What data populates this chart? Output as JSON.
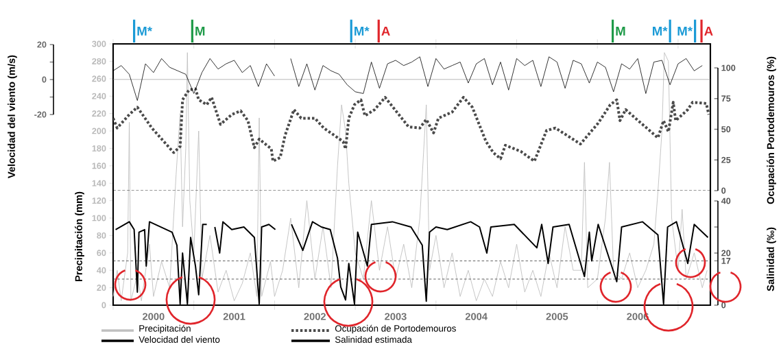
{
  "chart_data": [
    {
      "type": "line",
      "xlim": [
        2000,
        2007.4
      ],
      "tick_labels": "y",
      "ylabel": "Velocidad del viento (m/s)",
      "ylim": [
        -20,
        20
      ],
      "yticks": [
        -20,
        {
          "value": -10,
          "label": null
        },
        0,
        {
          "value": 10,
          "label": null
        },
        20
      ],
      "legend": "bottom",
      "ref_lines": [
        {
          "axis": "y",
          "value": 0,
          "color": "#888888",
          "line_style": "solid"
        }
      ],
      "series": [
        {
          "name": "Velocidad del viento",
          "color": "#000000",
          "line_style": "solid",
          "x": [
            2000.0,
            2000.1,
            2000.2,
            2000.3,
            2000.4,
            2000.5,
            2000.6,
            2000.7,
            2000.8,
            2000.9,
            2001.0,
            2001.1,
            2001.2,
            2001.3,
            2001.4,
            2001.5,
            2001.6,
            2001.7,
            2001.8,
            2001.9,
            2002.0,
            2002.1,
            2002.2,
            2002.3,
            2002.4,
            2002.5,
            2002.6,
            2002.7,
            2002.8,
            2002.9,
            2003.0,
            2003.1,
            2003.2,
            2003.3,
            2003.4,
            2003.5,
            2003.6,
            2003.7,
            2003.8,
            2003.9,
            2004.0,
            2004.1,
            2004.2,
            2004.3,
            2004.4,
            2004.5,
            2004.6,
            2004.7,
            2004.8,
            2004.9,
            2005.0,
            2005.1,
            2005.2,
            2005.3,
            2005.4,
            2005.5,
            2005.6,
            2005.7,
            2005.8,
            2005.9,
            2006.0,
            2006.1,
            2006.2,
            2006.3,
            2006.4,
            2006.5,
            2006.6,
            2006.7,
            2006.8,
            2006.9,
            2007.0,
            2007.1,
            2007.2,
            2007.3
          ],
          "values": [
            5,
            8,
            3,
            -12,
            9,
            4,
            12,
            7,
            5,
            3,
            -8,
            4,
            12,
            6,
            9,
            11,
            4,
            8,
            -4,
            9,
            2,
            null,
            12,
            -4,
            9,
            -6,
            8,
            5,
            3,
            -3,
            -7,
            -8,
            10,
            -5,
            9,
            11,
            8,
            10,
            13,
            -4,
            12,
            6,
            8,
            10,
            -2,
            9,
            12,
            -3,
            10,
            -6,
            12,
            8,
            11,
            -4,
            13,
            10,
            -5,
            11,
            9,
            -2,
            10,
            7,
            -7,
            9,
            6,
            12,
            -8,
            10,
            11,
            -3,
            9,
            12,
            5,
            8
          ]
        }
      ]
    },
    {
      "type": "line",
      "xlim": [
        2000,
        2007.4
      ],
      "xticks": [
        {
          "value": 2000,
          "label": null
        },
        {
          "value": 2000.5,
          "label": "2000"
        },
        {
          "value": 2001,
          "label": null
        },
        {
          "value": 2001.5,
          "label": "2001"
        },
        {
          "value": 2002,
          "label": null
        },
        {
          "value": 2002.5,
          "label": "2002"
        },
        {
          "value": 2003,
          "label": null
        },
        {
          "value": 2003.5,
          "label": "2003"
        },
        {
          "value": 2004,
          "label": null
        },
        {
          "value": 2004.5,
          "label": "2004"
        },
        {
          "value": 2005,
          "label": null
        },
        {
          "value": 2005.5,
          "label": "2005"
        },
        {
          "value": 2006,
          "label": null
        },
        {
          "value": 2006.5,
          "label": "2006"
        },
        {
          "value": 2007,
          "label": null
        }
      ],
      "ylabel": "Precipitación (mm)",
      "ylim": [
        0,
        300
      ],
      "yticks": [
        0,
        20,
        40,
        60,
        80,
        100,
        120,
        140,
        160,
        180,
        200,
        220,
        240,
        260,
        280,
        300
      ],
      "y2label": "Ocupación Portodemouros (%)",
      "y2lim": [
        0,
        100
      ],
      "y2ticks": [
        0,
        25,
        50,
        75,
        100
      ],
      "y3label": "Salinidad  (‰)",
      "y3lim": [
        0,
        40
      ],
      "y3ticks": [
        0,
        17,
        20,
        {
          "value": 30,
          "label": null
        },
        40
      ],
      "legend": "bottom",
      "ref_lines": [
        {
          "axis": "y2",
          "value": 0,
          "color": "#000000",
          "line_style": "dashed"
        },
        {
          "axis": "y3",
          "value": 17,
          "color": "#333333",
          "line_style": "dotted"
        },
        {
          "axis": "y3",
          "value": 10,
          "color": "#333333",
          "line_style": "dotted"
        },
        {
          "axis": "x",
          "value": 2000.26,
          "label": "M*",
          "color": "#1a9ad6"
        },
        {
          "axis": "x",
          "value": 2000.98,
          "label": "M",
          "color": "#1e9a48"
        },
        {
          "axis": "x",
          "value": 2002.95,
          "label": "M*",
          "color": "#1a9ad6"
        },
        {
          "axis": "x",
          "value": 2003.29,
          "label": "A",
          "color": "#e0252b"
        },
        {
          "axis": "x",
          "value": 2006.19,
          "label": "M",
          "color": "#1e9a48"
        },
        {
          "axis": "x",
          "value": 2006.9,
          "label": "M*",
          "color": "#1a9ad6"
        },
        {
          "axis": "x",
          "value": 2007.21,
          "label": "M*",
          "color": "#1a9ad6"
        },
        {
          "axis": "x",
          "value": 2007.29,
          "label": "A",
          "color": "#e0252b"
        }
      ],
      "series": [
        {
          "name": "Precipitación",
          "color": "#c0c0c0",
          "line_style": "solid",
          "x": [
            2000.0,
            2000.05,
            2000.1,
            2000.18,
            2000.2,
            2000.22,
            2000.3,
            2000.35,
            2000.45,
            2000.5,
            2000.6,
            2000.7,
            2000.78,
            2000.83,
            2000.86,
            2000.9,
            2000.92,
            2000.95,
            2001.0,
            2001.06,
            2001.1,
            2001.2,
            2001.3,
            2001.4,
            2001.5,
            2001.6,
            2001.7,
            2001.78,
            2001.81,
            2001.84,
            2001.95,
            2002.0,
            2002.1,
            2002.2,
            2002.3,
            2002.4,
            2002.5,
            2002.6,
            2002.7,
            2002.78,
            2002.83,
            2002.88,
            2002.92,
            2003.0,
            2003.1,
            2003.2,
            2003.3,
            2003.4,
            2003.5,
            2003.6,
            2003.7,
            2003.8,
            2003.88,
            2003.92,
            2004.0,
            2004.1,
            2004.2,
            2004.3,
            2004.4,
            2004.5,
            2004.6,
            2004.7,
            2004.8,
            2004.9,
            2005.0,
            2005.1,
            2005.2,
            2005.3,
            2005.4,
            2005.5,
            2005.6,
            2005.7,
            2005.8,
            2005.84,
            2005.88,
            2006.0,
            2006.1,
            2006.15,
            2006.2,
            2006.3,
            2006.4,
            2006.5,
            2006.6,
            2006.7,
            2006.75,
            2006.8,
            2006.83,
            2006.88,
            2006.92,
            2007.0,
            2007.05,
            2007.1,
            2007.2,
            2007.3,
            2007.36
          ],
          "values": [
            10,
            40,
            5,
            60,
            210,
            5,
            35,
            5,
            70,
            10,
            50,
            20,
            150,
            220,
            90,
            180,
            290,
            120,
            60,
            200,
            30,
            80,
            15,
            40,
            5,
            25,
            60,
            10,
            215,
            10,
            50,
            10,
            40,
            100,
            20,
            120,
            30,
            90,
            20,
            160,
            230,
            200,
            140,
            60,
            30,
            120,
            40,
            90,
            30,
            70,
            20,
            100,
            230,
            40,
            80,
            20,
            60,
            10,
            40,
            5,
            30,
            10,
            50,
            20,
            70,
            15,
            40,
            10,
            60,
            20,
            90,
            40,
            40,
            164,
            20,
            30,
            100,
            164,
            40,
            30,
            60,
            20,
            40,
            70,
            130,
            200,
            290,
            280,
            100,
            40,
            110,
            30,
            60,
            20,
            40
          ]
        },
        {
          "name": "Ocupación de Portodemouros",
          "color": "#4a4a4a",
          "axis": "y2",
          "line_style": "dotted",
          "x": [
            2000.0,
            2000.05,
            2000.2,
            2000.3,
            2000.48,
            2000.75,
            2000.83,
            2000.86,
            2000.94,
            2001.02,
            2001.06,
            2001.16,
            2001.22,
            2001.33,
            2001.47,
            2001.58,
            2001.67,
            2001.75,
            2001.81,
            2001.96,
            2001.98,
            2002.07,
            2002.13,
            2002.24,
            2002.33,
            2002.5,
            2002.61,
            2002.85,
            2002.88,
            2002.92,
            2002.99,
            2003.07,
            2003.12,
            2003.24,
            2003.37,
            2003.66,
            2003.8,
            2003.88,
            2003.97,
            2004.03,
            2004.2,
            2004.34,
            2004.45,
            2004.62,
            2004.71,
            2004.8,
            2004.86,
            2005.05,
            2005.22,
            2005.37,
            2005.48,
            2005.79,
            2006.01,
            2006.16,
            2006.24,
            2006.28,
            2006.35,
            2006.75,
            2006.82,
            2006.88,
            2006.94,
            2006.97,
            2007.12,
            2007.18,
            2007.35,
            2007.38
          ],
          "values": [
            59,
            51,
            62,
            68,
            51,
            31,
            36,
            74,
            82,
            83,
            74,
            70,
            76,
            54,
            62,
            65,
            57,
            35,
            42,
            34,
            24,
            27,
            45,
            66,
            59,
            59,
            51,
            40,
            34,
            59,
            70,
            74,
            61,
            66,
            76,
            52,
            51,
            58,
            47,
            59,
            64,
            76,
            68,
            40,
            31,
            26,
            37,
            32,
            24,
            49,
            51,
            38,
            55,
            70,
            74,
            57,
            66,
            43,
            57,
            48,
            72,
            57,
            66,
            72,
            71,
            62
          ]
        },
        {
          "name": "Salinidad estimada",
          "color": "#000000",
          "axis": "y3",
          "line_style": "solid",
          "x": [
            2000.03,
            2000.2,
            2000.26,
            2000.3,
            2000.32,
            2000.39,
            2000.41,
            2000.45,
            2000.73,
            2000.79,
            2000.83,
            2000.86,
            2000.92,
            2000.96,
            2001.02,
            2001.06,
            2001.11,
            2001.16,
            2001.2,
            2001.26,
            2001.32,
            2001.36,
            2001.47,
            2001.62,
            2001.75,
            2001.81,
            2001.84,
            2001.93,
            2002.01,
            2002.1,
            2002.21,
            2002.35,
            2002.47,
            2002.58,
            2002.69,
            2002.78,
            2002.82,
            2002.88,
            2002.92,
            2002.99,
            2003.03,
            2003.15,
            2003.2,
            2003.46,
            2003.69,
            2003.83,
            2003.88,
            2003.92,
            2004.0,
            2004.14,
            2004.43,
            2004.54,
            2004.63,
            2004.68,
            2004.97,
            2005.25,
            2005.31,
            2005.39,
            2005.45,
            2005.65,
            2005.84,
            2005.9,
            2005.93,
            2006.01,
            2006.24,
            2006.3,
            2006.56,
            2006.75,
            2006.82,
            2006.87,
            2006.98,
            2007.12,
            2007.2,
            2007.37
          ],
          "values": [
            29,
            32,
            29,
            5,
            28,
            29,
            15,
            32,
            28,
            23,
            0.5,
            20,
            0.5,
            26,
            15,
            4,
            31,
            31,
            null,
            30,
            20,
            32,
            29,
            30,
            26,
            0.5,
            30,
            31,
            29,
            null,
            31,
            21,
            32,
            30,
            29,
            18,
            7,
            2,
            16,
            0.5,
            28,
            15,
            31,
            32,
            30,
            23,
            1.5,
            28,
            30,
            29,
            32,
            30,
            20,
            30,
            31,
            22,
            31,
            16,
            30,
            31,
            11,
            28,
            17,
            31,
            9,
            30,
            32,
            27,
            0.5,
            30,
            32,
            16,
            31,
            26
          ]
        }
      ]
    }
  ]
}
